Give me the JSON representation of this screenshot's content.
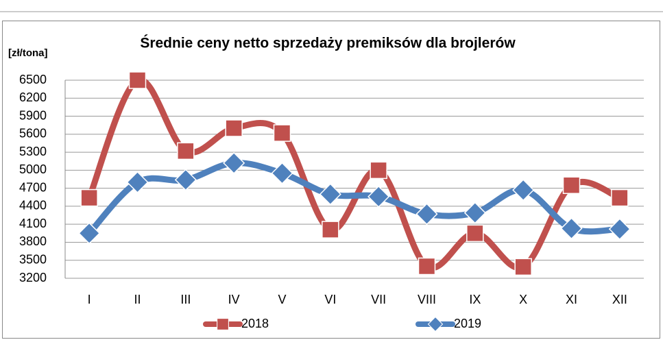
{
  "chart_data": {
    "type": "line",
    "title": "Średnie ceny netto  sprzedaży premiksów dla brojlerów",
    "y_label": "[zł/tona]",
    "categories": [
      "I",
      "II",
      "III",
      "IV",
      "V",
      "VI",
      "VII",
      "VIII",
      "IX",
      "X",
      "XI",
      "XII"
    ],
    "series": [
      {
        "name": "2018",
        "color": "#c0504d",
        "marker": "square",
        "values": [
          4540,
          6500,
          5320,
          5700,
          5620,
          4010,
          5000,
          3400,
          3950,
          3390,
          4750,
          4540
        ]
      },
      {
        "name": "2019",
        "color": "#4f81bd",
        "marker": "diamond",
        "values": [
          3950,
          4800,
          4840,
          5120,
          4950,
          4600,
          4560,
          4270,
          4290,
          4670,
          4030,
          4020
        ]
      }
    ],
    "ylim": [
      3200,
      6500
    ],
    "yticks": [
      3200,
      3500,
      3800,
      4100,
      4400,
      4700,
      5000,
      5300,
      5600,
      5900,
      6200,
      6500
    ],
    "grid": true,
    "legend": "bottom"
  }
}
